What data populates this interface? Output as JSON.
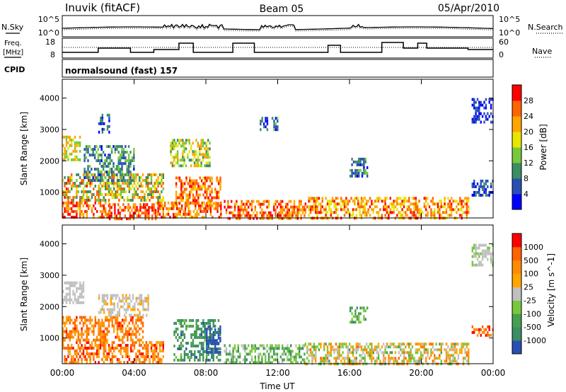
{
  "header": {
    "station": "Inuvik (fitACF)",
    "beam": "Beam 05",
    "date": "05/Apr/2010"
  },
  "panel_labels": {
    "nsky": "N.Sky",
    "nsearch": "N.Search",
    "freq_line1": "Freq.",
    "freq_line2": "[MHz]",
    "nave": "Nave",
    "cpid": "CPID",
    "mode": "normalsound (fast) 157"
  },
  "noise_axis": {
    "left_ticks": [
      "10^5",
      "10^0"
    ],
    "right_ticks": [
      "10^5",
      "10^0"
    ]
  },
  "freq_axis": {
    "left_ticks": [
      "18",
      "8"
    ],
    "right_ticks": [
      "60",
      "0"
    ]
  },
  "chart_data": [
    {
      "type": "heatmap",
      "quantity": "Power",
      "ylabel": "Slant Range [km]",
      "xlabel": "Time UT",
      "xlim_hours": [
        0,
        24
      ],
      "ylim": [
        180,
        4600
      ],
      "x_ticks": [
        "00:00",
        "04:00",
        "08:00",
        "12:00",
        "16:00",
        "20:00",
        "00:00"
      ],
      "y_ticks": [
        1000,
        2000,
        3000,
        4000
      ],
      "colorbar": {
        "label": "Power [dB]",
        "ticks": [
          "4",
          "8",
          "12",
          "16",
          "20",
          "24",
          "28"
        ],
        "colors": [
          "#0000ff",
          "#2850b4",
          "#3c8c64",
          "#78c83c",
          "#e6e600",
          "#ffa500",
          "#ff6400",
          "#ff0000"
        ]
      },
      "scatter_regions": [
        {
          "t": [
            0.0,
            2.6
          ],
          "r": [
            180,
            700
          ],
          "v": [
            0.6,
            1.0
          ]
        },
        {
          "t": [
            2.6,
            5.2
          ],
          "r": [
            180,
            650
          ],
          "v": [
            0.7,
            1.0
          ]
        },
        {
          "t": [
            5.2,
            8.8
          ],
          "r": [
            180,
            700
          ],
          "v": [
            0.6,
            1.0
          ]
        },
        {
          "t": [
            6.3,
            8.8
          ],
          "r": [
            600,
            1500
          ],
          "v": [
            0.6,
            0.95
          ]
        },
        {
          "t": [
            0.0,
            5.6
          ],
          "r": [
            700,
            1600
          ],
          "v": [
            0.25,
            0.9
          ]
        },
        {
          "t": [
            0.0,
            1.0
          ],
          "r": [
            2000,
            2800
          ],
          "v": [
            0.4,
            0.75
          ]
        },
        {
          "t": [
            1.2,
            4.0
          ],
          "r": [
            1400,
            2500
          ],
          "v": [
            0.1,
            0.5
          ]
        },
        {
          "t": [
            6.0,
            8.2
          ],
          "r": [
            1800,
            2700
          ],
          "v": [
            0.3,
            0.7
          ]
        },
        {
          "t": [
            9.0,
            13.5
          ],
          "r": [
            180,
            750
          ],
          "v": [
            0.6,
            1.0
          ]
        },
        {
          "t": [
            13.5,
            22.6
          ],
          "r": [
            180,
            850
          ],
          "v": [
            0.5,
            0.95
          ]
        },
        {
          "t": [
            16.0,
            17.0
          ],
          "r": [
            1500,
            2100
          ],
          "v": [
            0.05,
            0.4
          ]
        },
        {
          "t": [
            22.8,
            24.0
          ],
          "r": [
            3200,
            4000
          ],
          "v": [
            0.0,
            0.25
          ]
        },
        {
          "t": [
            22.8,
            24.0
          ],
          "r": [
            900,
            1400
          ],
          "v": [
            0.0,
            0.3
          ]
        },
        {
          "t": [
            2.0,
            2.6
          ],
          "r": [
            2900,
            3500
          ],
          "v": [
            0.0,
            0.35
          ]
        },
        {
          "t": [
            11.0,
            12.0
          ],
          "r": [
            3000,
            3400
          ],
          "v": [
            0.05,
            0.4
          ]
        }
      ]
    },
    {
      "type": "heatmap",
      "quantity": "Velocity",
      "ylabel": "Slant Range [km]",
      "xlabel": "Time UT",
      "xlim_hours": [
        0,
        24
      ],
      "ylim": [
        180,
        4600
      ],
      "x_ticks": [
        "00:00",
        "04:00",
        "08:00",
        "12:00",
        "16:00",
        "20:00",
        "00:00"
      ],
      "y_ticks": [
        1000,
        2000,
        3000,
        4000
      ],
      "colorbar": {
        "label": "Velocity [m s^-1]",
        "ticks": [
          "1000",
          "500",
          "100",
          "25",
          "-25",
          "-100",
          "-500",
          "-1000"
        ],
        "colors": [
          "#2850b4",
          "#3c8c64",
          "#46a050",
          "#78c83c",
          "#c0c0c0",
          "#ffa500",
          "#ff8c00",
          "#ff6400",
          "#ff0000"
        ]
      },
      "scatter_regions": [
        {
          "t": [
            0.0,
            5.6
          ],
          "r": [
            180,
            900
          ],
          "v": [
            0.55,
            0.95
          ]
        },
        {
          "t": [
            0.0,
            4.5
          ],
          "r": [
            900,
            1700
          ],
          "v": [
            0.6,
            0.9
          ]
        },
        {
          "t": [
            0.0,
            1.2
          ],
          "r": [
            2100,
            2800
          ],
          "v": [
            0.45,
            0.55
          ]
        },
        {
          "t": [
            2.0,
            4.8
          ],
          "r": [
            1700,
            2400
          ],
          "v": [
            0.45,
            0.6
          ]
        },
        {
          "t": [
            6.2,
            8.8
          ],
          "r": [
            300,
            1600
          ],
          "v": [
            0.1,
            0.35
          ]
        },
        {
          "t": [
            8.0,
            8.8
          ],
          "r": [
            500,
            1400
          ],
          "v": [
            0.0,
            0.1
          ]
        },
        {
          "t": [
            9.0,
            13.5
          ],
          "r": [
            180,
            800
          ],
          "v": [
            0.2,
            0.5
          ]
        },
        {
          "t": [
            13.5,
            22.6
          ],
          "r": [
            180,
            850
          ],
          "v": [
            0.3,
            0.8
          ]
        },
        {
          "t": [
            16.0,
            17.0
          ],
          "r": [
            1500,
            2000
          ],
          "v": [
            0.2,
            0.4
          ]
        },
        {
          "t": [
            22.8,
            24.0
          ],
          "r": [
            3300,
            4000
          ],
          "v": [
            0.4,
            0.55
          ]
        },
        {
          "t": [
            22.8,
            24.0
          ],
          "r": [
            1100,
            1400
          ],
          "v": [
            0.7,
            0.95
          ]
        }
      ]
    }
  ]
}
